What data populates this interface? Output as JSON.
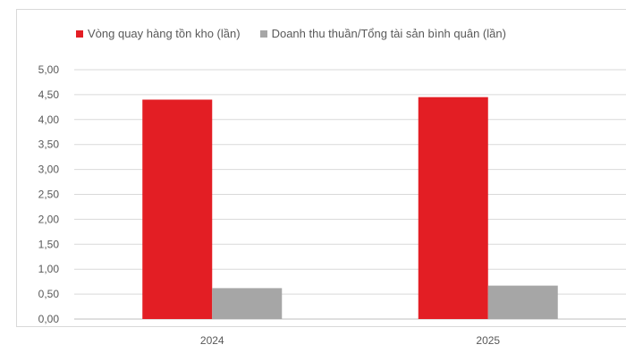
{
  "chart_data": {
    "type": "bar",
    "categories": [
      "2024",
      "2025"
    ],
    "series": [
      {
        "name": "Vòng quay hàng tồn kho (lần)",
        "color": "#e31e24",
        "values": [
          4.4,
          4.45
        ]
      },
      {
        "name": "Doanh thu thuần/Tổng tài sản bình quân (lần)",
        "color": "#a6a6a6",
        "values": [
          0.62,
          0.67
        ]
      }
    ],
    "ylim": [
      0,
      5
    ],
    "yticks": [
      "0,00",
      "0,50",
      "1,00",
      "1,50",
      "2,00",
      "2,50",
      "3,00",
      "3,50",
      "4,00",
      "4,50",
      "5,00"
    ],
    "grid": true,
    "legend_position": "top"
  }
}
